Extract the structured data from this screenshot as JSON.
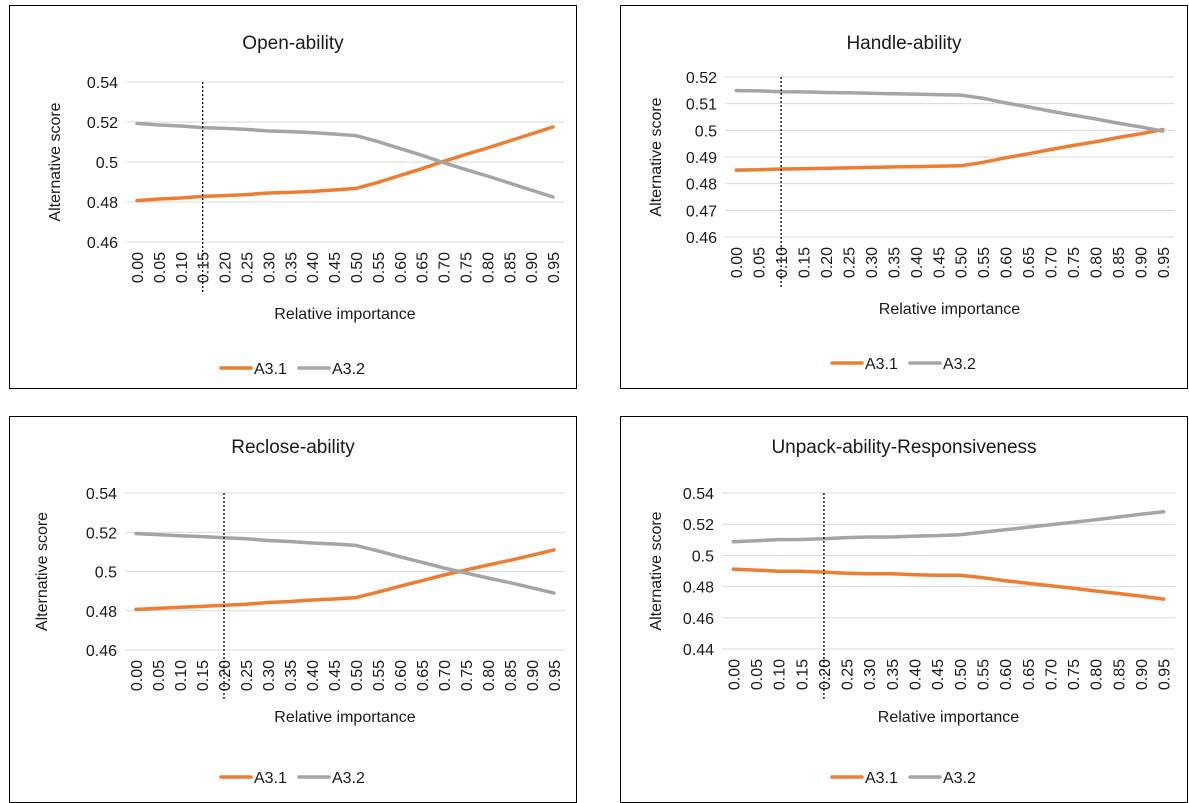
{
  "colors": {
    "A3.1": "#ED7D31",
    "A3.2": "#A5A5A5",
    "grid": "#D9D9D9",
    "marker": "#000000"
  },
  "chart_data": [
    {
      "type": "line",
      "title": "Open-ability",
      "xlabel": "Relative importance",
      "ylabel": "Alternative score",
      "categories": [
        "0.00",
        "0.05",
        "0.10",
        "0.15",
        "0.20",
        "0.25",
        "0.30",
        "0.35",
        "0.40",
        "0.45",
        "0.50",
        "0.55",
        "0.60",
        "0.65",
        "0.70",
        "0.75",
        "0.80",
        "0.85",
        "0.90",
        "0.95"
      ],
      "ylim": [
        0.46,
        0.54
      ],
      "yticks": [
        "0.46",
        "0.48",
        "0.5",
        "0.52",
        "0.54"
      ],
      "grid": true,
      "legend": "bottom",
      "marker_x": 0.15,
      "series": [
        {
          "name": "A3.1",
          "values": [
            0.4807,
            0.4815,
            0.482,
            0.4828,
            0.4832,
            0.4837,
            0.4845,
            0.4848,
            0.4853,
            0.486,
            0.4868,
            0.4898,
            0.4932,
            0.4966,
            0.5003,
            0.5037,
            0.507,
            0.5105,
            0.514,
            0.5175
          ]
        },
        {
          "name": "A3.2",
          "values": [
            0.5193,
            0.5185,
            0.518,
            0.5172,
            0.5168,
            0.5163,
            0.5155,
            0.5152,
            0.5147,
            0.514,
            0.5132,
            0.5102,
            0.5068,
            0.5034,
            0.4997,
            0.4963,
            0.493,
            0.4895,
            0.486,
            0.4825
          ]
        }
      ]
    },
    {
      "type": "line",
      "title": "Handle-ability",
      "xlabel": "Relative importance",
      "ylabel": "Alternative score",
      "categories": [
        "0.00",
        "0.05",
        "0.10",
        "0.15",
        "0.20",
        "0.25",
        "0.30",
        "0.35",
        "0.40",
        "0.45",
        "0.50",
        "0.55",
        "0.60",
        "0.65",
        "0.70",
        "0.75",
        "0.80",
        "0.85",
        "0.90",
        "0.95"
      ],
      "ylim": [
        0.46,
        0.52
      ],
      "yticks": [
        "0.46",
        "0.47",
        "0.48",
        "0.49",
        "0.5",
        "0.51",
        "0.52"
      ],
      "grid": true,
      "legend": "bottom",
      "marker_x": 0.1,
      "series": [
        {
          "name": "A3.1",
          "values": [
            0.4851,
            0.4852,
            0.4855,
            0.4856,
            0.4858,
            0.4859,
            0.4861,
            0.4863,
            0.4864,
            0.4866,
            0.4867,
            0.488,
            0.4897,
            0.4912,
            0.4928,
            0.4943,
            0.4957,
            0.4973,
            0.4987,
            0.5003
          ]
        },
        {
          "name": "A3.2",
          "values": [
            0.5149,
            0.5148,
            0.5145,
            0.5144,
            0.5142,
            0.5141,
            0.5139,
            0.5137,
            0.5136,
            0.5134,
            0.5132,
            0.512,
            0.5103,
            0.5088,
            0.5072,
            0.5057,
            0.5043,
            0.5027,
            0.5013,
            0.4997
          ]
        }
      ]
    },
    {
      "type": "line",
      "title": "Reclose-ability",
      "xlabel": "Relative importance",
      "ylabel": "Alternative score",
      "categories": [
        "0.00",
        "0.05",
        "0.10",
        "0.15",
        "0.20",
        "0.25",
        "0.30",
        "0.35",
        "0.40",
        "0.45",
        "0.50",
        "0.55",
        "0.60",
        "0.65",
        "0.70",
        "0.75",
        "0.80",
        "0.85",
        "0.90",
        "0.95"
      ],
      "ylim": [
        0.46,
        0.54
      ],
      "yticks": [
        "0.46",
        "0.48",
        "0.5",
        "0.52",
        "0.54"
      ],
      "grid": true,
      "legend": "bottom",
      "marker_x": 0.2,
      "series": [
        {
          "name": "A3.1",
          "values": [
            0.4807,
            0.4812,
            0.4818,
            0.4822,
            0.4828,
            0.4833,
            0.4842,
            0.4847,
            0.4855,
            0.486,
            0.4867,
            0.4895,
            0.4925,
            0.4953,
            0.4982,
            0.5008,
            0.5033,
            0.5057,
            0.5083,
            0.511
          ]
        },
        {
          "name": "A3.2",
          "values": [
            0.5193,
            0.5188,
            0.5182,
            0.5178,
            0.5172,
            0.5167,
            0.5158,
            0.5153,
            0.5145,
            0.514,
            0.5133,
            0.5105,
            0.5075,
            0.5047,
            0.5018,
            0.4992,
            0.4967,
            0.4943,
            0.4917,
            0.489
          ]
        }
      ]
    },
    {
      "type": "line",
      "title": "Unpack-ability-Responsiveness",
      "xlabel": "Relative importance",
      "ylabel": "Alternative score",
      "categories": [
        "0.00",
        "0.05",
        "0.10",
        "0.15",
        "0.20",
        "0.25",
        "0.30",
        "0.35",
        "0.40",
        "0.45",
        "0.50",
        "0.55",
        "0.60",
        "0.65",
        "0.70",
        "0.75",
        "0.80",
        "0.85",
        "0.90",
        "0.95"
      ],
      "ylim": [
        0.44,
        0.54
      ],
      "yticks": [
        "0.44",
        "0.46",
        "0.48",
        "0.5",
        "0.52",
        "0.54"
      ],
      "grid": true,
      "legend": "bottom",
      "marker_x": 0.2,
      "series": [
        {
          "name": "A3.1",
          "values": [
            0.4912,
            0.4906,
            0.4899,
            0.4898,
            0.4893,
            0.4886,
            0.4882,
            0.4882,
            0.4876,
            0.4873,
            0.4873,
            0.4858,
            0.4838,
            0.4822,
            0.4805,
            0.4789,
            0.4772,
            0.4756,
            0.4739,
            0.472
          ]
        },
        {
          "name": "A3.2",
          "values": [
            0.5088,
            0.5094,
            0.5101,
            0.5102,
            0.5107,
            0.5114,
            0.5118,
            0.5118,
            0.5124,
            0.5127,
            0.5133,
            0.5148,
            0.5164,
            0.518,
            0.5196,
            0.5213,
            0.5229,
            0.5246,
            0.5264,
            0.528
          ]
        }
      ]
    }
  ]
}
